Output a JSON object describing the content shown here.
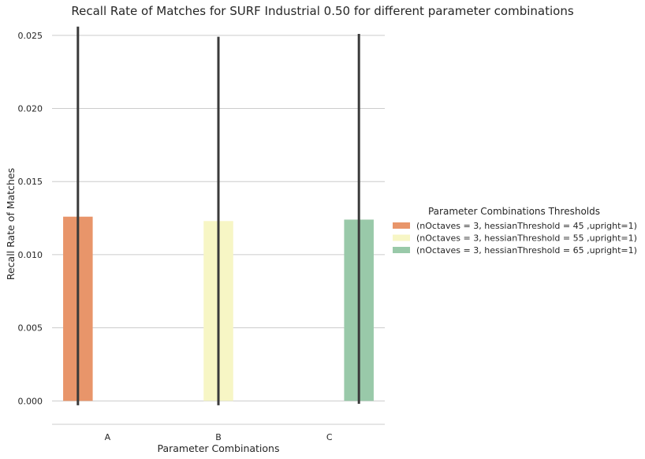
{
  "chart_data": {
    "type": "bar",
    "title": "Recall Rate of Matches for SURF Industrial 0.50 for different parameter combinations",
    "xlabel": "Parameter Combinations",
    "ylabel": "Recall Rate of Matches",
    "categories": [
      "A",
      "B",
      "C"
    ],
    "ylim": [
      -0.0016,
      0.0258
    ],
    "yticks": [
      0.0,
      0.005,
      0.01,
      0.015,
      0.02,
      0.025
    ],
    "ytick_labels": [
      "0.000",
      "0.005",
      "0.010",
      "0.015",
      "0.020",
      "0.025"
    ],
    "grid": true,
    "legend": {
      "title": "Parameter Combinations Thresholds",
      "placement": "right"
    },
    "series": [
      {
        "name": "(nOctaves = 3, hessianThreshold = 45 ,upright=1)",
        "color": "#e8956a",
        "values": [
          0.0126,
          null,
          null
        ],
        "error_low": [
          -0.0003,
          null,
          null
        ],
        "error_high": [
          0.0256,
          null,
          null
        ]
      },
      {
        "name": "(nOctaves = 3, hessianThreshold = 55 ,upright=1)",
        "color": "#f7f6c5",
        "values": [
          null,
          0.0123,
          null
        ],
        "error_low": [
          null,
          -0.0003,
          null
        ],
        "error_high": [
          null,
          0.0249,
          null
        ]
      },
      {
        "name": "(nOctaves = 3, hessianThreshold = 65 ,upright=1)",
        "color": "#99c9a9",
        "values": [
          null,
          null,
          0.0124
        ],
        "error_low": [
          null,
          null,
          -0.0002
        ],
        "error_high": [
          null,
          null,
          0.0251
        ]
      }
    ],
    "errorbar_color": "#3a3a3a"
  }
}
